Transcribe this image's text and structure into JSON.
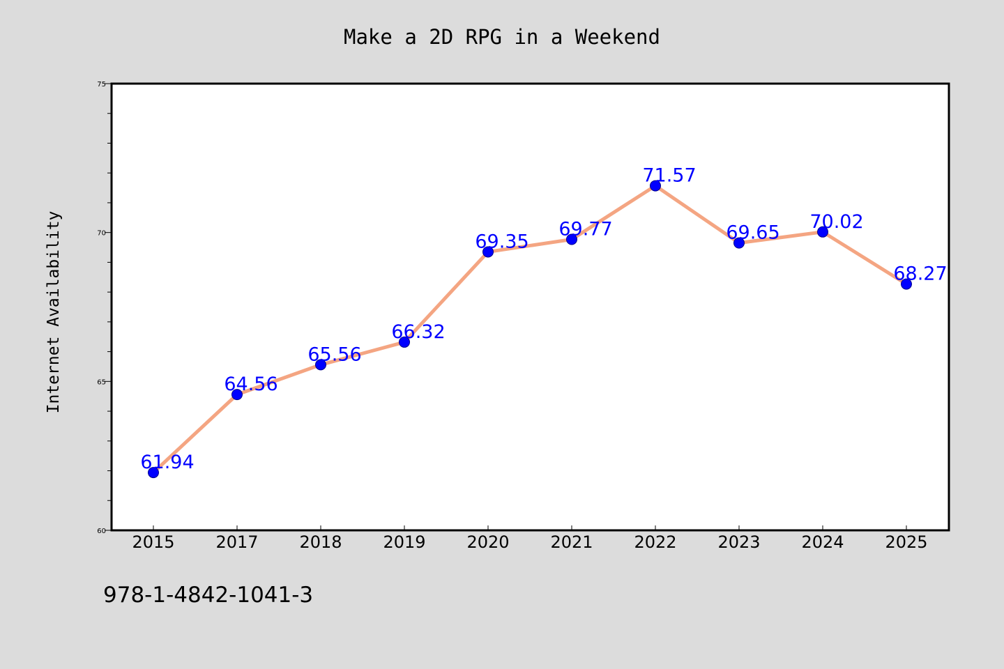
{
  "chart_data": {
    "type": "line",
    "title": "Make a 2D RPG in a Weekend",
    "xlabel": "",
    "ylabel": "Internet Availability",
    "categories": [
      "2015",
      "2017",
      "2018",
      "2019",
      "2020",
      "2021",
      "2022",
      "2023",
      "2024",
      "2025"
    ],
    "series": [
      {
        "values": [
          61.94,
          64.56,
          65.56,
          66.32,
          69.35,
          69.77,
          71.57,
          69.65,
          70.02,
          68.27
        ],
        "data_labels": [
          "61.94",
          "64.56",
          "65.56",
          "66.32",
          "69.35",
          "69.77",
          "71.57",
          "69.65",
          "70.02",
          "68.27"
        ]
      }
    ],
    "ylim": [
      60,
      75
    ],
    "yticks": [
      "60",
      "65",
      "70",
      "75"
    ],
    "grid": false,
    "legend": "none"
  },
  "footer": {
    "isbn": "978-1-4842-1041-3"
  },
  "colors": {
    "line": "#f4a582",
    "marker": "#0000ff",
    "data_label": "#0000ff",
    "background": "#dcdcdc",
    "plot_area": "#ffffff"
  }
}
